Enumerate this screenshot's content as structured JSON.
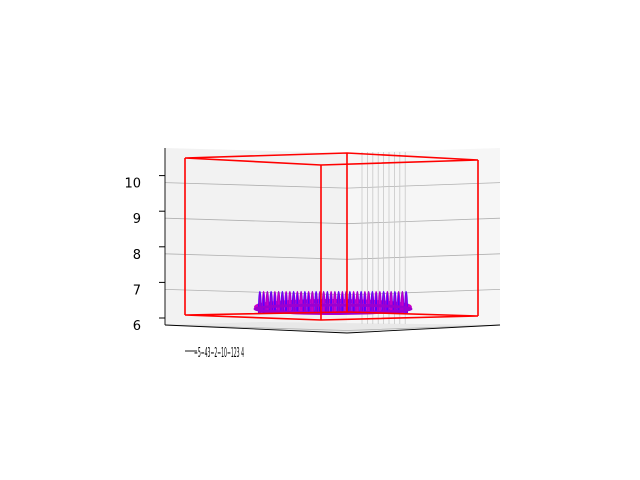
{
  "chart_data": {
    "type": "3d-line",
    "title": "",
    "xlabel": "",
    "ylabel": "",
    "zlabel": "",
    "z_ticks": [
      "6",
      "7",
      "8",
      "9",
      "10"
    ],
    "zlim": [
      6,
      10.6
    ],
    "x_tick_text": "−5−4−3−2−1 0 1 2 3 4",
    "x_tick_visible_text": "−5−43−2−10−123 4",
    "xlim": [
      -5,
      4
    ],
    "grid": true,
    "series": [
      {
        "kind": "helix-surface",
        "z_range": [
          6.3,
          6.8
        ],
        "turns": 40,
        "colors": [
          "#9900cc",
          "#6600ff",
          "#cc00cc"
        ]
      },
      {
        "kind": "wireframe-box",
        "color": "#ff0000",
        "z_range": [
          6.0,
          10.6
        ]
      }
    ],
    "colors": {
      "box": "#ff0000",
      "helix_a": "#9b00d0",
      "helix_b": "#5a00ff",
      "helix_c": "#c800c8",
      "pane": "#f2f2f2",
      "grid": "#b0b0b0"
    }
  }
}
